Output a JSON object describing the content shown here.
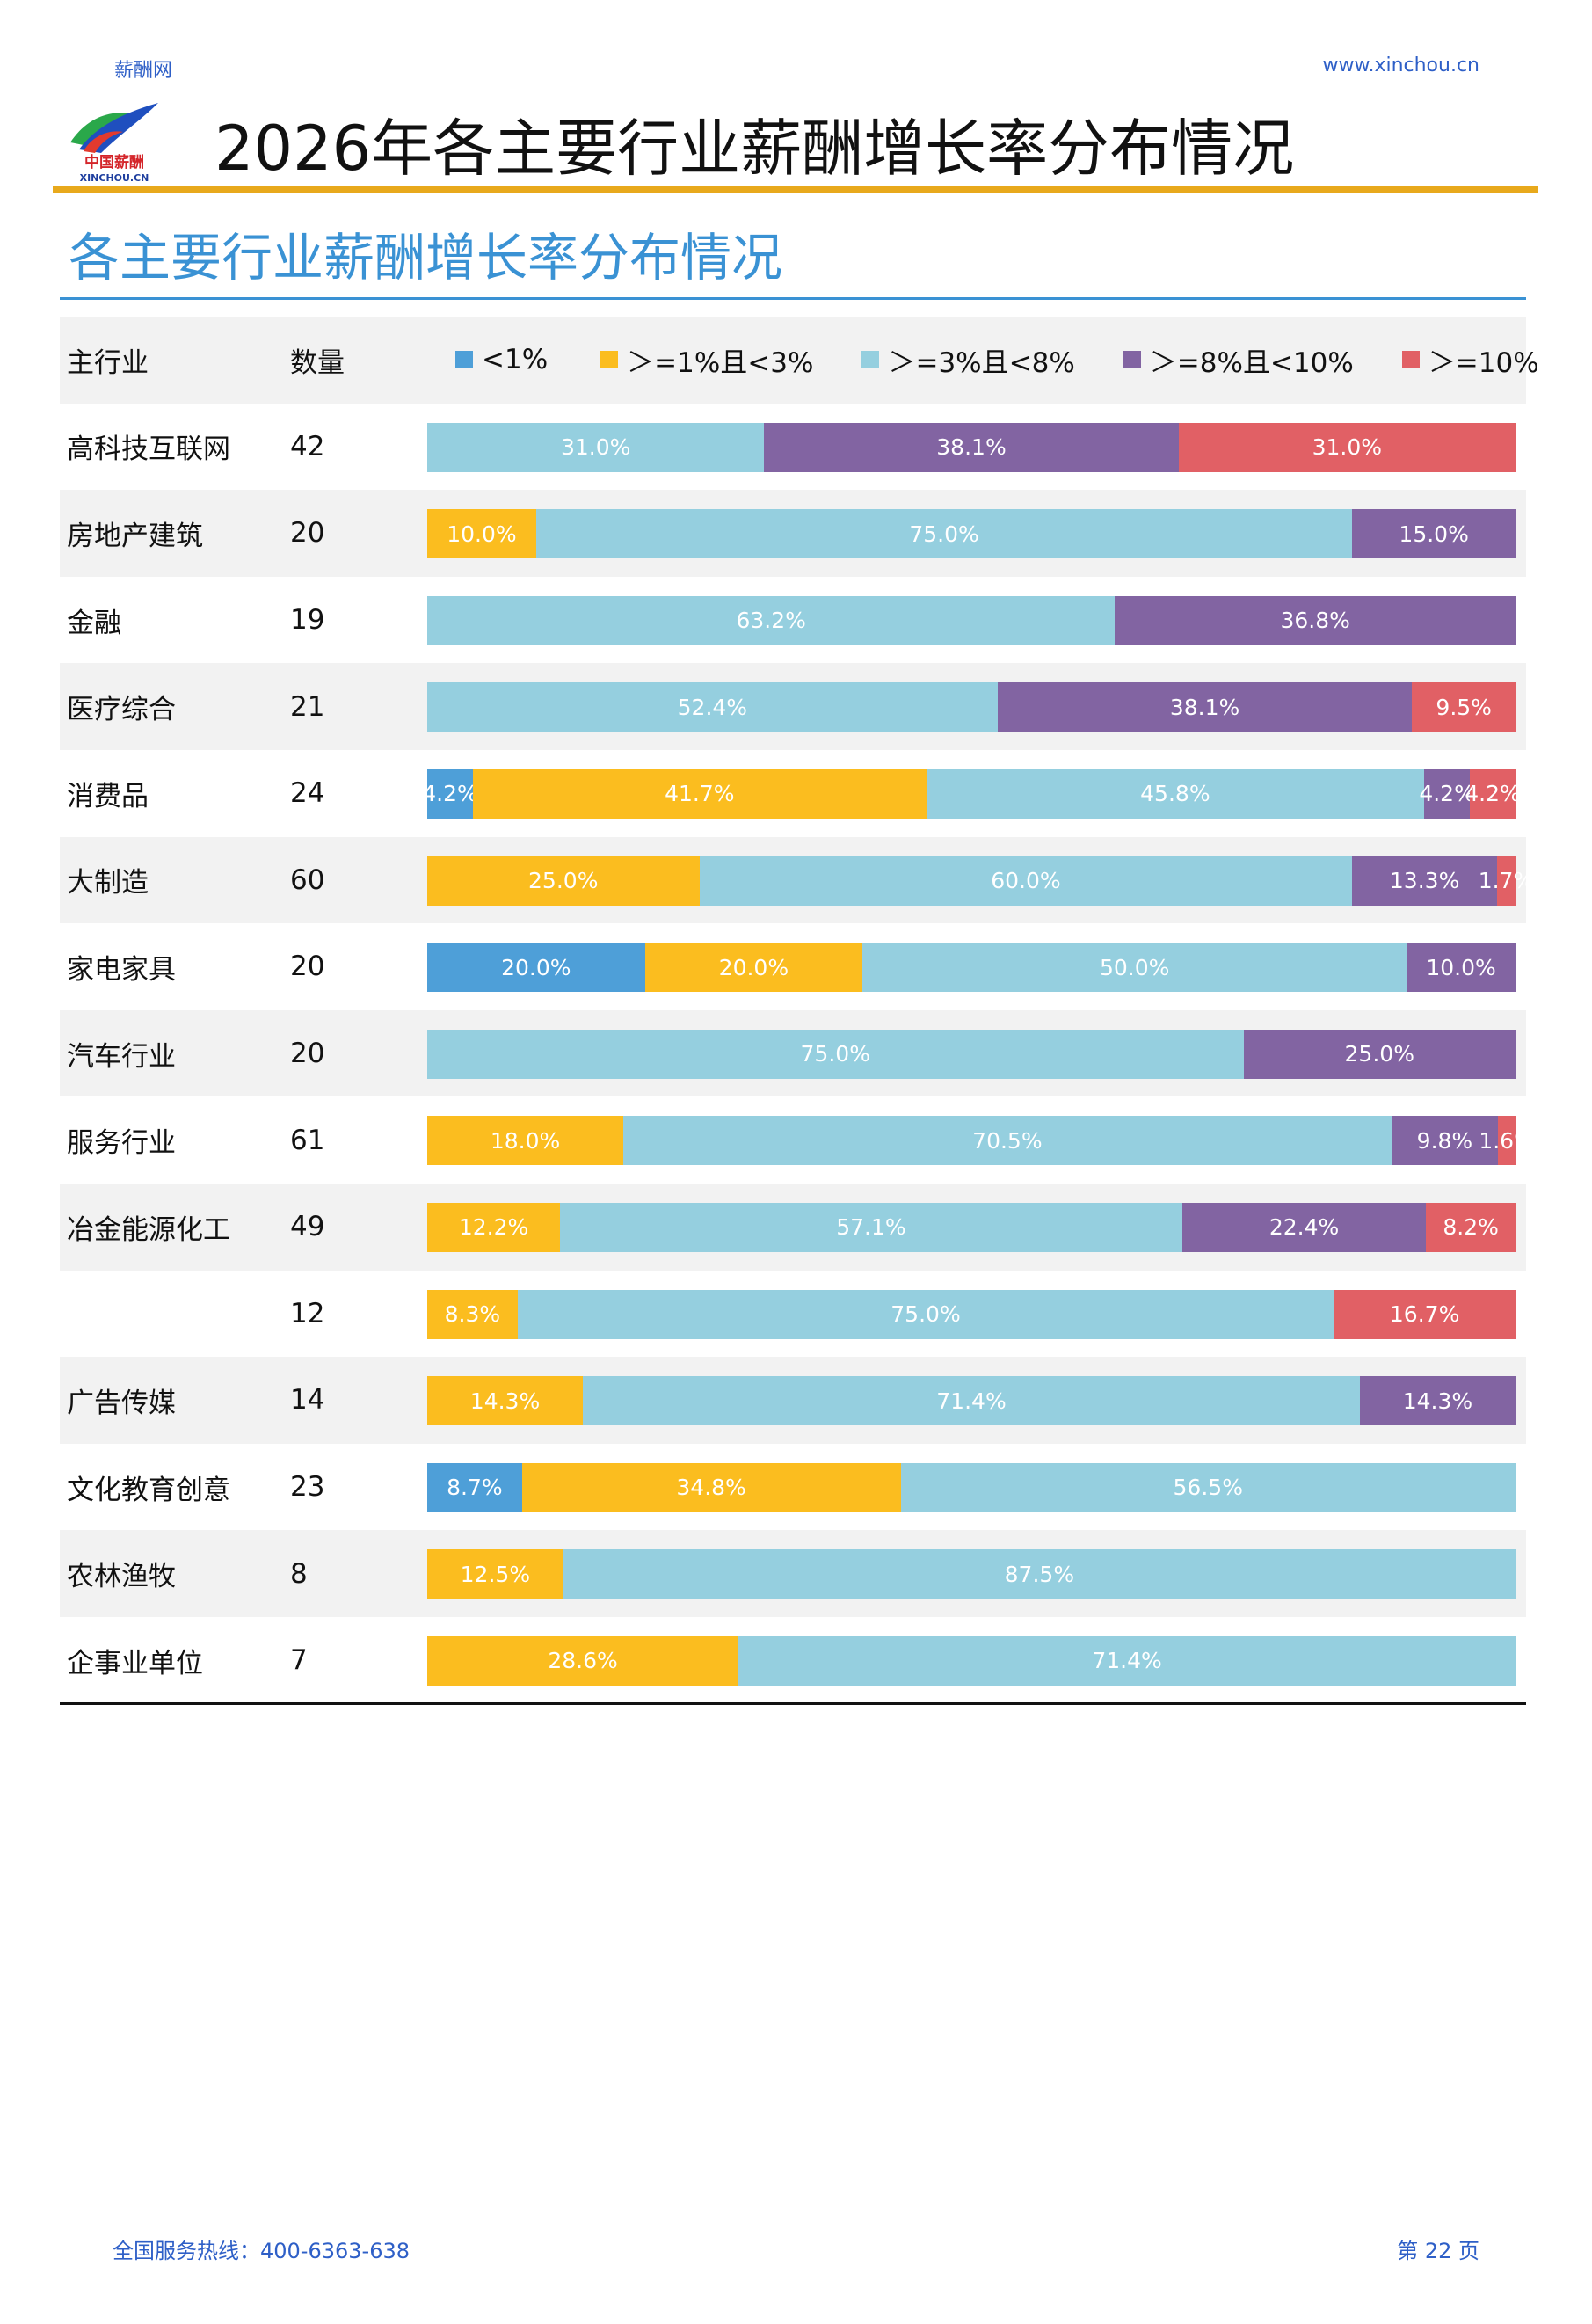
{
  "header": {
    "site_name": "薪酬网",
    "site_url": "www.xinchou.cn",
    "logo_text_cn": "中国薪酬",
    "logo_text_en": "XINCHOU.CN",
    "doc_title": "2026年各主要行业薪酬增长率分布情况"
  },
  "section": {
    "title": "各主要行业薪酬增长率分布情况"
  },
  "table": {
    "col_industry": "主行业",
    "col_count": "数量",
    "legend": [
      {
        "label": "<1%",
        "color": "#4e9fd8"
      },
      {
        "label": "＞=1%且<3%",
        "color": "#fbbd1f"
      },
      {
        "label": "＞=3%且<8%",
        "color": "#95cfdf"
      },
      {
        "label": "＞=8%且<10%",
        "color": "#8264a2"
      },
      {
        "label": "＞=10%",
        "color": "#e16065"
      }
    ],
    "rows": [
      {
        "industry": "高科技互联网",
        "count": "42",
        "values": [
          0,
          0,
          31.0,
          38.1,
          31.0
        ],
        "labels": [
          "",
          "",
          "31.0%",
          "38.1%",
          "31.0%"
        ]
      },
      {
        "industry": "房地产建筑",
        "count": "20",
        "values": [
          0,
          10.0,
          75.0,
          15.0,
          0
        ],
        "labels": [
          "",
          "10.0%",
          "75.0%",
          "15.0%",
          ""
        ]
      },
      {
        "industry": "金融",
        "count": "19",
        "values": [
          0,
          0,
          63.2,
          36.8,
          0
        ],
        "labels": [
          "",
          "",
          "63.2%",
          "36.8%",
          ""
        ]
      },
      {
        "industry": "医疗综合",
        "count": "21",
        "values": [
          0,
          0,
          52.4,
          38.1,
          9.5
        ],
        "labels": [
          "",
          "",
          "52.4%",
          "38.1%",
          "9.5%"
        ]
      },
      {
        "industry": "消费品",
        "count": "24",
        "values": [
          4.2,
          41.7,
          45.8,
          4.2,
          4.2
        ],
        "labels": [
          "4.2%",
          "41.7%",
          "45.8%",
          "4.2%",
          "4.2%"
        ]
      },
      {
        "industry": "大制造",
        "count": "60",
        "values": [
          0,
          25.0,
          60.0,
          13.3,
          1.7
        ],
        "labels": [
          "",
          "25.0%",
          "60.0%",
          "13.3%",
          "1.7%"
        ]
      },
      {
        "industry": "家电家具",
        "count": "20",
        "values": [
          20.0,
          20.0,
          50.0,
          10.0,
          0
        ],
        "labels": [
          "20.0%",
          "20.0%",
          "50.0%",
          "10.0%",
          ""
        ]
      },
      {
        "industry": "汽车行业",
        "count": "20",
        "values": [
          0,
          0,
          75.0,
          25.0,
          0
        ],
        "labels": [
          "",
          "",
          "75.0%",
          "25.0%",
          ""
        ]
      },
      {
        "industry": "服务行业",
        "count": "61",
        "values": [
          0,
          18.0,
          70.5,
          9.8,
          1.6
        ],
        "labels": [
          "",
          "18.0%",
          "70.5%",
          "9.8%",
          "1.6%"
        ]
      },
      {
        "industry": "冶金能源化工",
        "count": "49",
        "values": [
          0,
          12.2,
          57.1,
          22.4,
          8.2
        ],
        "labels": [
          "",
          "12.2%",
          "57.1%",
          "22.4%",
          "8.2%"
        ]
      },
      {
        "industry": "",
        "count": "12",
        "values": [
          0,
          8.3,
          75.0,
          0,
          16.7
        ],
        "labels": [
          "",
          "8.3%",
          "75.0%",
          "",
          "16.7%"
        ]
      },
      {
        "industry": "广告传媒",
        "count": "14",
        "values": [
          0,
          14.3,
          71.4,
          14.3,
          0
        ],
        "labels": [
          "",
          "14.3%",
          "71.4%",
          "14.3%",
          ""
        ]
      },
      {
        "industry": "文化教育创意",
        "count": "23",
        "values": [
          8.7,
          34.8,
          56.5,
          0,
          0
        ],
        "labels": [
          "8.7%",
          "34.8%",
          "56.5%",
          "",
          ""
        ]
      },
      {
        "industry": "农林渔牧",
        "count": "8",
        "values": [
          0,
          12.5,
          87.5,
          0,
          0
        ],
        "labels": [
          "",
          "12.5%",
          "87.5%",
          "",
          ""
        ]
      },
      {
        "industry": "企事业单位",
        "count": "7",
        "values": [
          0,
          28.6,
          71.4,
          0,
          0
        ],
        "labels": [
          "",
          "28.6%",
          "71.4%",
          "",
          ""
        ]
      }
    ]
  },
  "footer": {
    "hotline": "全国服务热线：400-6363-638",
    "page": "第 22 页"
  }
}
